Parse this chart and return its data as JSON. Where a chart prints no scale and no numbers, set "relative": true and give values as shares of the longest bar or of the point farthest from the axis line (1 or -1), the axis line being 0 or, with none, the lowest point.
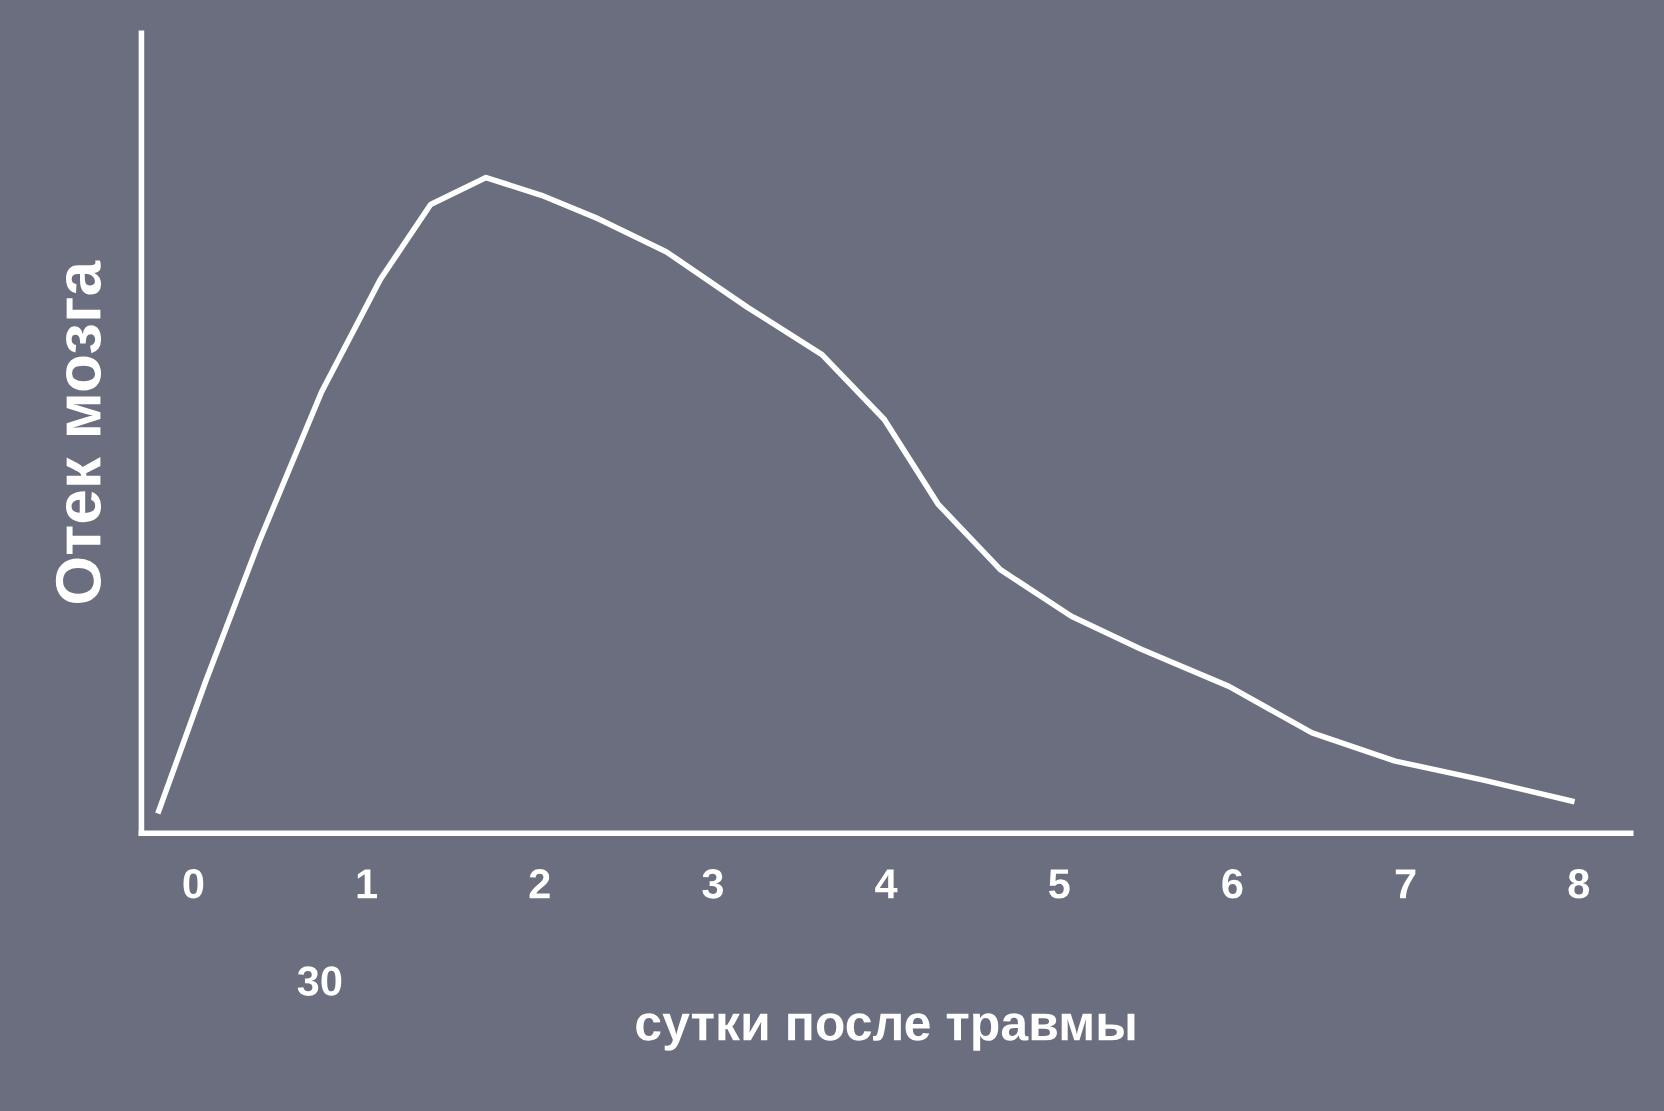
{
  "chart_data": {
    "type": "line",
    "relative": true,
    "ylabel": "Отек мозга",
    "xlabel": "сутки после травмы",
    "x": [
      -0.2,
      0.07,
      0.38,
      0.74,
      1.08,
      1.37,
      1.69,
      2.01,
      2.34,
      2.73,
      3.2,
      3.63,
      3.99,
      4.3,
      4.66,
      5.07,
      5.47,
      5.98,
      6.46,
      6.94,
      7.45,
      7.96
    ],
    "series": [
      {
        "color": "#ffffff",
        "values": [
          0.034,
          0.231,
          0.445,
          0.673,
          0.845,
          0.959,
          1.0,
          0.973,
          0.937,
          0.887,
          0.802,
          0.73,
          0.631,
          0.502,
          0.402,
          0.331,
          0.281,
          0.224,
          0.153,
          0.11,
          0.081,
          0.049
        ]
      }
    ],
    "xlim": [
      -0.3,
      8.3
    ],
    "xticks": [
      0,
      1,
      2,
      3,
      4,
      5,
      6,
      7,
      8
    ],
    "annotations": [
      "30"
    ],
    "grid": false,
    "legend": false,
    "marker": "none",
    "line_style": "solid"
  }
}
